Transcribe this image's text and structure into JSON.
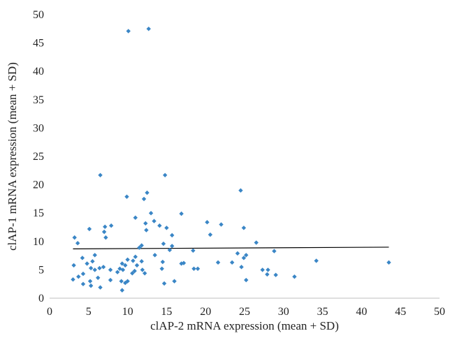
{
  "chart_data": {
    "type": "scatter",
    "xlabel": "clAP-2 mRNA expression (mean + SD)",
    "ylabel": "clAP-1 mRNA expression (mean + SD)",
    "xlim": [
      0,
      50
    ],
    "ylim": [
      0,
      50
    ],
    "x_ticks": [
      "0",
      "5",
      "10",
      "15",
      "20",
      "25",
      "30",
      "35",
      "40",
      "45",
      "50"
    ],
    "y_ticks": [
      "0",
      "5",
      "10",
      "15",
      "20",
      "25",
      "30",
      "35",
      "40",
      "45",
      "50"
    ],
    "grid": false,
    "legend": "none",
    "marker_color": "#3a86c6",
    "trendline_color": "#000000",
    "trendline": {
      "x": [
        3.0,
        43.5
      ],
      "y": [
        8.7,
        9.0
      ]
    },
    "points": [
      {
        "x": 10.1,
        "y": 47.1
      },
      {
        "x": 12.7,
        "y": 47.5
      },
      {
        "x": 6.5,
        "y": 21.7
      },
      {
        "x": 14.8,
        "y": 21.7
      },
      {
        "x": 9.9,
        "y": 17.9
      },
      {
        "x": 12.5,
        "y": 18.6
      },
      {
        "x": 24.5,
        "y": 19.0
      },
      {
        "x": 12.1,
        "y": 17.5
      },
      {
        "x": 16.9,
        "y": 14.9
      },
      {
        "x": 13.0,
        "y": 15.0
      },
      {
        "x": 11.0,
        "y": 14.2
      },
      {
        "x": 13.4,
        "y": 13.6
      },
      {
        "x": 20.2,
        "y": 13.4
      },
      {
        "x": 12.3,
        "y": 13.2
      },
      {
        "x": 22.0,
        "y": 13.0
      },
      {
        "x": 7.9,
        "y": 12.8
      },
      {
        "x": 7.1,
        "y": 12.6
      },
      {
        "x": 14.1,
        "y": 12.8
      },
      {
        "x": 15.0,
        "y": 12.4
      },
      {
        "x": 24.9,
        "y": 12.4
      },
      {
        "x": 5.1,
        "y": 12.2
      },
      {
        "x": 12.4,
        "y": 12.0
      },
      {
        "x": 7.0,
        "y": 11.7
      },
      {
        "x": 20.6,
        "y": 11.2
      },
      {
        "x": 15.7,
        "y": 11.1
      },
      {
        "x": 3.2,
        "y": 10.7
      },
      {
        "x": 7.2,
        "y": 10.7
      },
      {
        "x": 3.6,
        "y": 9.7
      },
      {
        "x": 26.5,
        "y": 9.8
      },
      {
        "x": 14.6,
        "y": 9.6
      },
      {
        "x": 11.8,
        "y": 9.3
      },
      {
        "x": 11.5,
        "y": 8.9
      },
      {
        "x": 15.7,
        "y": 9.2
      },
      {
        "x": 15.4,
        "y": 8.5
      },
      {
        "x": 18.4,
        "y": 8.4
      },
      {
        "x": 28.8,
        "y": 8.3
      },
      {
        "x": 24.1,
        "y": 7.9
      },
      {
        "x": 5.8,
        "y": 7.6
      },
      {
        "x": 13.5,
        "y": 7.6
      },
      {
        "x": 25.2,
        "y": 7.6
      },
      {
        "x": 11.0,
        "y": 7.3
      },
      {
        "x": 4.2,
        "y": 7.1
      },
      {
        "x": 24.9,
        "y": 7.1
      },
      {
        "x": 10.0,
        "y": 6.8
      },
      {
        "x": 10.7,
        "y": 6.6
      },
      {
        "x": 34.2,
        "y": 6.6
      },
      {
        "x": 5.5,
        "y": 6.5
      },
      {
        "x": 11.8,
        "y": 6.5
      },
      {
        "x": 14.5,
        "y": 6.4
      },
      {
        "x": 21.6,
        "y": 6.3
      },
      {
        "x": 23.4,
        "y": 6.3
      },
      {
        "x": 43.5,
        "y": 6.3
      },
      {
        "x": 4.8,
        "y": 6.1
      },
      {
        "x": 9.3,
        "y": 6.1
      },
      {
        "x": 16.9,
        "y": 6.1
      },
      {
        "x": 3.1,
        "y": 5.8
      },
      {
        "x": 9.7,
        "y": 5.8
      },
      {
        "x": 11.2,
        "y": 5.8
      },
      {
        "x": 17.2,
        "y": 6.2
      },
      {
        "x": 6.9,
        "y": 5.5
      },
      {
        "x": 24.6,
        "y": 5.5
      },
      {
        "x": 5.3,
        "y": 5.3
      },
      {
        "x": 6.4,
        "y": 5.3
      },
      {
        "x": 9.0,
        "y": 5.2
      },
      {
        "x": 14.4,
        "y": 5.2
      },
      {
        "x": 18.5,
        "y": 5.2
      },
      {
        "x": 19.0,
        "y": 5.2
      },
      {
        "x": 5.8,
        "y": 5.0
      },
      {
        "x": 7.8,
        "y": 5.0
      },
      {
        "x": 9.4,
        "y": 5.0
      },
      {
        "x": 11.9,
        "y": 5.0
      },
      {
        "x": 27.3,
        "y": 5.0
      },
      {
        "x": 28.0,
        "y": 5.0
      },
      {
        "x": 10.9,
        "y": 4.8
      },
      {
        "x": 8.7,
        "y": 4.6
      },
      {
        "x": 10.6,
        "y": 4.4
      },
      {
        "x": 12.2,
        "y": 4.4
      },
      {
        "x": 4.3,
        "y": 4.3
      },
      {
        "x": 27.9,
        "y": 4.2
      },
      {
        "x": 29.0,
        "y": 4.1
      },
      {
        "x": 31.4,
        "y": 3.8
      },
      {
        "x": 3.7,
        "y": 3.8
      },
      {
        "x": 6.2,
        "y": 3.6
      },
      {
        "x": 3.0,
        "y": 3.3
      },
      {
        "x": 7.8,
        "y": 3.2
      },
      {
        "x": 5.2,
        "y": 3.0
      },
      {
        "x": 9.2,
        "y": 3.0
      },
      {
        "x": 10.0,
        "y": 3.0
      },
      {
        "x": 16.0,
        "y": 3.0
      },
      {
        "x": 25.2,
        "y": 3.2
      },
      {
        "x": 9.7,
        "y": 2.7
      },
      {
        "x": 4.3,
        "y": 2.5
      },
      {
        "x": 14.7,
        "y": 2.6
      },
      {
        "x": 5.3,
        "y": 2.2
      },
      {
        "x": 6.5,
        "y": 1.9
      },
      {
        "x": 9.3,
        "y": 1.4
      }
    ]
  }
}
